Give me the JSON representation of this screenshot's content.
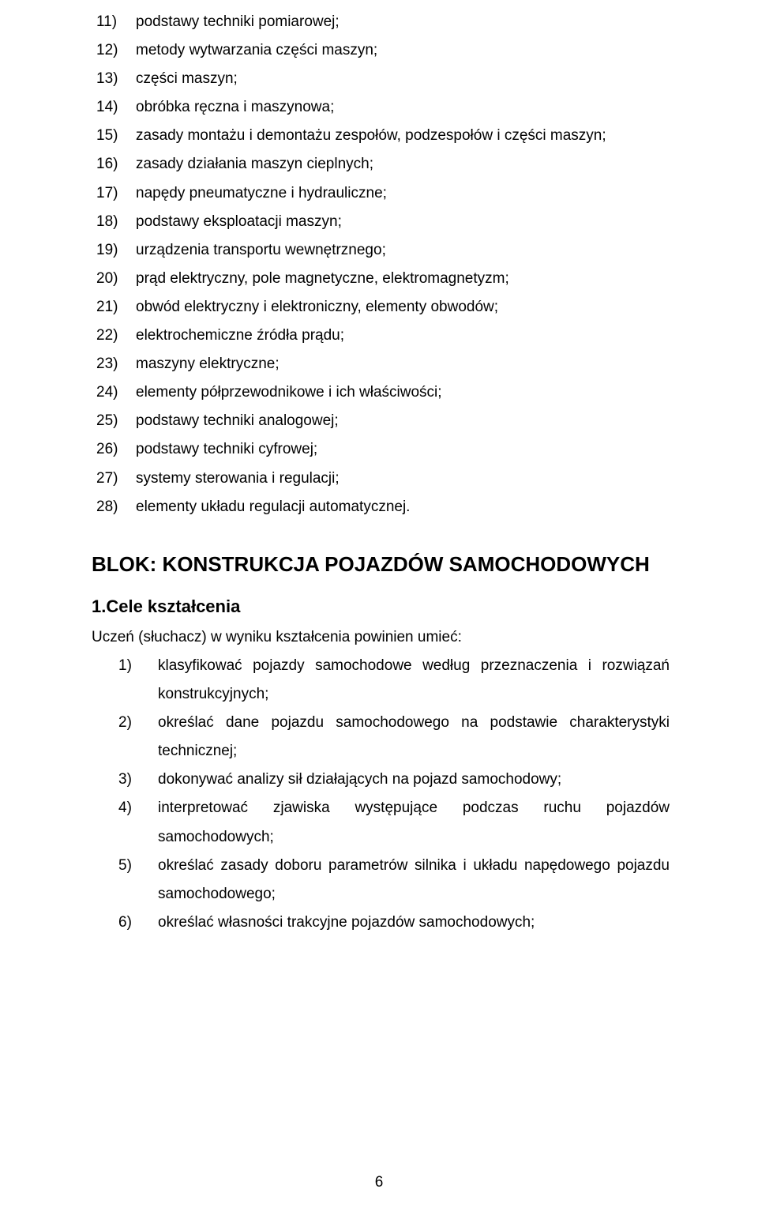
{
  "list1": [
    {
      "n": "11)",
      "t": "podstawy techniki pomiarowej;"
    },
    {
      "n": "12)",
      "t": "metody wytwarzania części maszyn;"
    },
    {
      "n": "13)",
      "t": "części maszyn;"
    },
    {
      "n": "14)",
      "t": " obróbka ręczna i maszynowa;"
    },
    {
      "n": "15)",
      "t": "zasady montażu i demontażu zespołów, podzespołów i części maszyn;"
    },
    {
      "n": "16)",
      "t": "zasady działania maszyn cieplnych;"
    },
    {
      "n": "17)",
      "t": "napędy pneumatyczne i hydrauliczne;"
    },
    {
      "n": "18)",
      "t": "podstawy eksploatacji maszyn;"
    },
    {
      "n": "19)",
      "t": "urządzenia transportu wewnętrznego;"
    },
    {
      "n": "20)",
      "t": "prąd elektryczny, pole magnetyczne, elektromagnetyzm;"
    },
    {
      "n": "21)",
      "t": "obwód elektryczny i elektroniczny, elementy obwodów;"
    },
    {
      "n": "22)",
      "t": "elektrochemiczne źródła prądu;"
    },
    {
      "n": "23)",
      "t": "maszyny elektryczne;"
    },
    {
      "n": "24)",
      "t": "elementy półprzewodnikowe i ich właściwości;"
    },
    {
      "n": "25)",
      "t": "podstawy techniki analogowej;"
    },
    {
      "n": "26)",
      "t": "podstawy techniki cyfrowej;"
    },
    {
      "n": "27)",
      "t": "systemy sterowania i regulacji;"
    },
    {
      "n": "28)",
      "t": "elementy układu regulacji automatycznej."
    }
  ],
  "block_title": "BLOK: KONSTRUKCJA POJAZDÓW SAMOCHODOWYCH",
  "sub_title": "1.Cele kształcenia",
  "intro": "Uczeń (słuchacz) w wyniku kształcenia powinien umieć:",
  "list2": [
    {
      "n": "1)",
      "t": "klasyfikować pojazdy samochodowe według przeznaczenia i rozwiązań konstrukcyjnych;"
    },
    {
      "n": "2)",
      "t": "określać dane pojazdu samochodowego na podstawie charakterystyki technicznej;"
    },
    {
      "n": "3)",
      "t": "dokonywać analizy sił działających na pojazd samochodowy;"
    },
    {
      "n": "4)",
      "t": "interpretować zjawiska występujące podczas ruchu pojazdów samochodowych;"
    },
    {
      "n": "5)",
      "t": "określać zasady doboru parametrów silnika i układu napędowego pojazdu samochodowego;"
    },
    {
      "n": "6)",
      "t": "określać własności trakcyjne pojazdów samochodowych;"
    }
  ],
  "page_number": "6"
}
